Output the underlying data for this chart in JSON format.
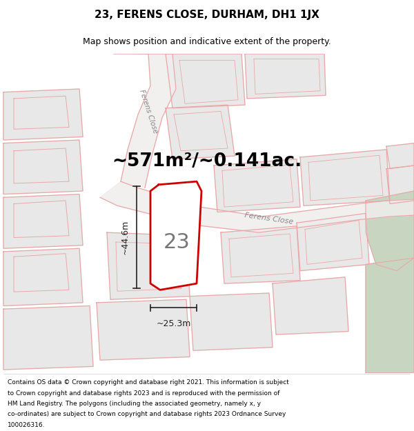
{
  "title": "23, FERENS CLOSE, DURHAM, DH1 1JX",
  "subtitle": "Map shows position and indicative extent of the property.",
  "area_text": "~571m²/~0.141ac.",
  "label_num": "23",
  "dim_horiz": "~25.3m",
  "dim_vert": "~44.6m",
  "road_label_diag": "Ferens Close",
  "road_label_horiz": "Ferens Close",
  "footer_lines": [
    "Contains OS data © Crown copyright and database right 2021. This information is subject",
    "to Crown copyright and database rights 2023 and is reproduced with the permission of",
    "HM Land Registry. The polygons (including the associated geometry, namely x, y",
    "co-ordinates) are subject to Crown copyright and database rights 2023 Ordnance Survey",
    "100026316."
  ],
  "map_bg": "#f5f5f5",
  "plot_bg": "#e8e8e8",
  "road_line_color": "#e8a8a8",
  "road_bg": "#f0eded",
  "property_edge": "#cc0000",
  "property_fill": "#ffffff",
  "green_color": "#c8d5c0",
  "dim_color": "#222222",
  "label_color": "#777777",
  "road_label_color": "#888888",
  "title_fontsize": 11,
  "subtitle_fontsize": 9,
  "area_fontsize": 19,
  "label_fontsize": 22,
  "footer_fontsize": 6.5,
  "dim_fontsize": 9
}
